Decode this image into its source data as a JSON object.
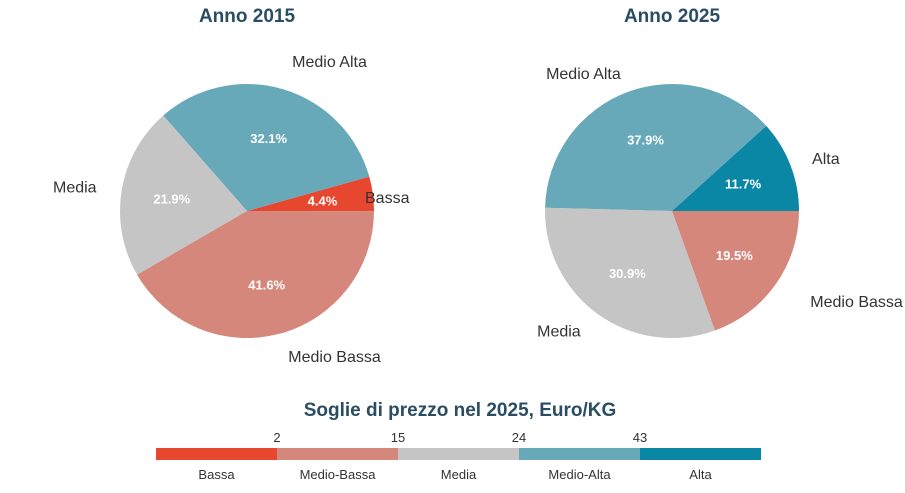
{
  "chart_data": [
    {
      "type": "pie",
      "title": "Anno 2015",
      "slices": [
        {
          "label": "Bassa",
          "value": 4.4,
          "value_label": "4.4%",
          "color": "#e8472f"
        },
        {
          "label": "Medio Alta",
          "value": 32.1,
          "value_label": "32.1%",
          "color": "#67a9b9"
        },
        {
          "label": "Media",
          "value": 21.9,
          "value_label": "21.9%",
          "color": "#c5c5c5"
        },
        {
          "label": "Medio Bassa",
          "value": 41.6,
          "value_label": "41.6%",
          "color": "#d6877b"
        }
      ]
    },
    {
      "type": "pie",
      "title": "Anno 2025",
      "slices": [
        {
          "label": "Alta",
          "value": 11.7,
          "value_label": "11.7%",
          "color": "#0b87a6"
        },
        {
          "label": "Medio Alta",
          "value": 37.9,
          "value_label": "37.9%",
          "color": "#67a9b9"
        },
        {
          "label": "Media",
          "value": 30.9,
          "value_label": "30.9%",
          "color": "#c5c5c5"
        },
        {
          "label": "Medio Bassa",
          "value": 19.5,
          "value_label": "19.5%",
          "color": "#d6877b"
        }
      ]
    }
  ],
  "threshold_legend": {
    "title": "Soglie di prezzo nel 2025, Euro/KG",
    "thresholds": [
      "2",
      "15",
      "24",
      "43"
    ],
    "categories": [
      {
        "label": "Bassa",
        "color": "#e8472f"
      },
      {
        "label": "Medio-Bassa",
        "color": "#d6877b"
      },
      {
        "label": "Media",
        "color": "#c5c5c5"
      },
      {
        "label": "Medio-Alta",
        "color": "#67a9b9"
      },
      {
        "label": "Alta",
        "color": "#0b87a6"
      }
    ]
  }
}
